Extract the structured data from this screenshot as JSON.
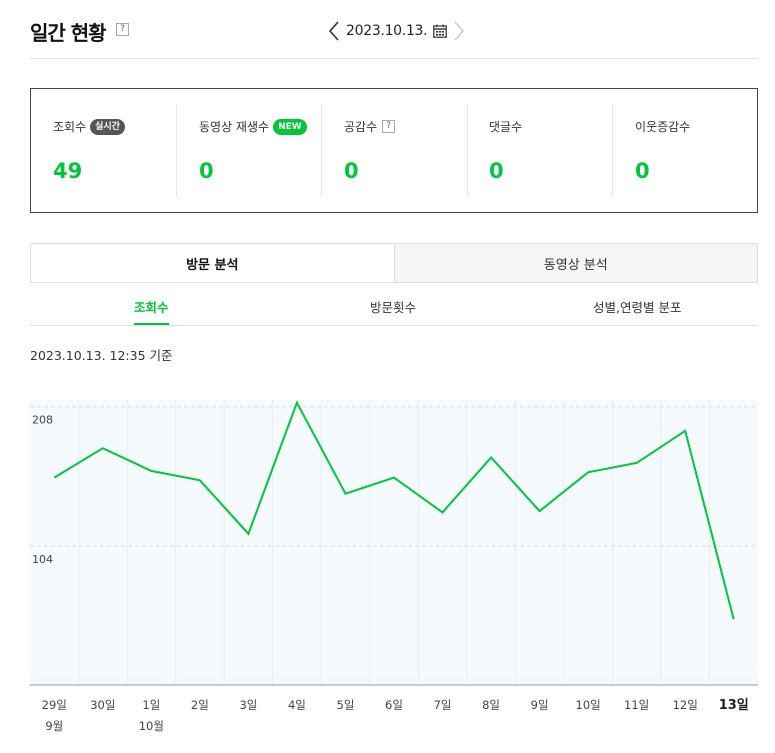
{
  "header": {
    "title": "일간 현황",
    "help": "?",
    "date": "2023.10.13."
  },
  "stats": [
    {
      "label": "조회수",
      "badge": "실시간",
      "value": "49"
    },
    {
      "label": "동영상 재생수",
      "badge": "NEW",
      "value": "0"
    },
    {
      "label": "공감수",
      "help": "?",
      "value": "0"
    },
    {
      "label": "댓글수",
      "value": "0"
    },
    {
      "label": "이웃증감수",
      "value": "0"
    }
  ],
  "main_tabs": [
    {
      "label": "방문 분석"
    },
    {
      "label": "동영상 분석"
    }
  ],
  "sub_tabs": [
    {
      "label": "조회수"
    },
    {
      "label": "방문횟수"
    },
    {
      "label": "성별,연령별 분포"
    }
  ],
  "timestamp": "2023.10.13. 12:35 기준",
  "colors": {
    "accent": "#00c63b",
    "plot_bg": "#f5fafe"
  },
  "chart_data": {
    "type": "line",
    "categories": [
      "29일",
      "30일",
      "1일",
      "2일",
      "3일",
      "4일",
      "5일",
      "6일",
      "7일",
      "8일",
      "9일",
      "10일",
      "11일",
      "12일",
      "13일"
    ],
    "sub_labels": [
      "9월",
      "",
      "10월",
      "",
      "",
      "",
      "",
      "",
      "",
      "",
      "",
      "",
      "",
      "",
      ""
    ],
    "series": [
      {
        "values": [
          155,
          177,
          160,
          153,
          113,
          211,
          143,
          155,
          129,
          170,
          130,
          159,
          166,
          190,
          49
        ]
      }
    ],
    "yticks": [
      208,
      104
    ],
    "ylim": [
      0,
      213
    ],
    "grid": "dashed horizontal, vertical day separators",
    "highlighted_category": "13일"
  }
}
